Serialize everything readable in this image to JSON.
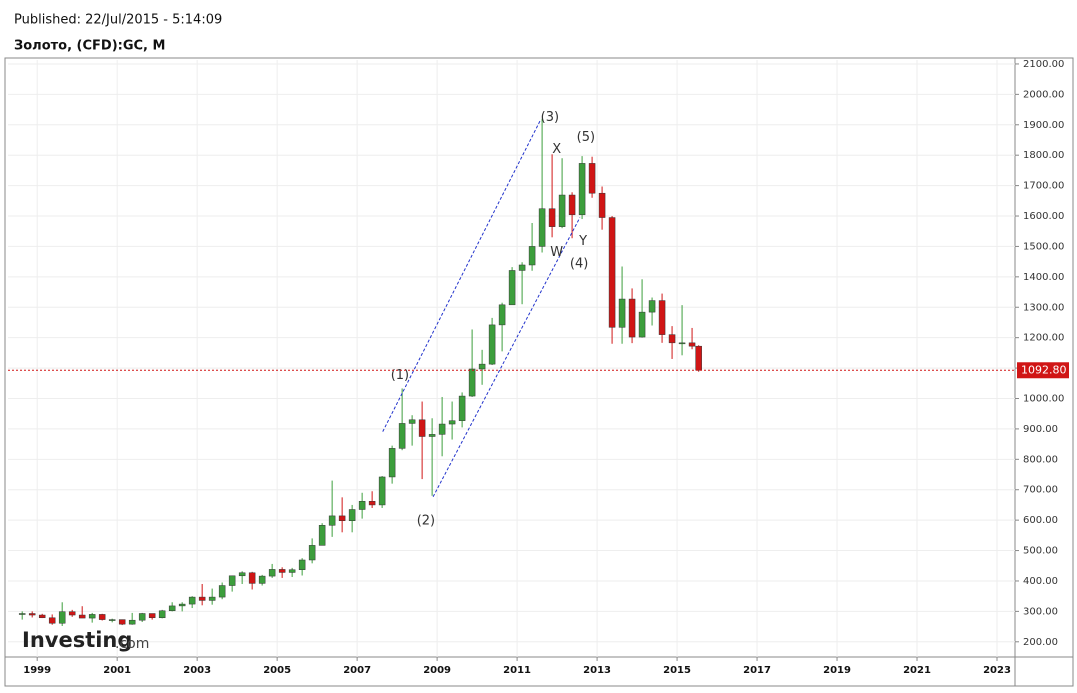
{
  "chart_data": {
    "type": "candlestick",
    "published": "Published: 22/Jul/2015 - 5:14:09",
    "title": "Золото, (CFD):GC, M",
    "brand": "Investing",
    "brand_suffix": ".com",
    "up_color": "#3c9e3c",
    "down_color": "#d01515",
    "grid": true,
    "xlim": [
      1998.27,
      2023.45
    ],
    "xticks": [
      1999,
      2001,
      2003,
      2005,
      2007,
      2009,
      2011,
      2013,
      2015,
      2017,
      2019,
      2021,
      2023
    ],
    "ylim": [
      150,
      2113
    ],
    "yticks": [
      {
        "value": 200,
        "label": "200.00"
      },
      {
        "value": 300,
        "label": "300.00"
      },
      {
        "value": 400,
        "label": "400.00"
      },
      {
        "value": 500,
        "label": "500.00"
      },
      {
        "value": 600,
        "label": "600.00"
      },
      {
        "value": 700,
        "label": "700.00"
      },
      {
        "value": 800,
        "label": "800.00"
      },
      {
        "value": 900,
        "label": "900.00"
      },
      {
        "value": 1000,
        "label": "1000.00"
      },
      {
        "value": 1100,
        "label": "1100.00"
      },
      {
        "value": 1200,
        "label": "1200.00"
      },
      {
        "value": 1300,
        "label": "1300.00"
      },
      {
        "value": 1400,
        "label": "1400.00"
      },
      {
        "value": 1500,
        "label": "1500.00"
      },
      {
        "value": 1600,
        "label": "1600.00"
      },
      {
        "value": 1700,
        "label": "1700.00"
      },
      {
        "value": 1800,
        "label": "1800.00"
      },
      {
        "value": 1900,
        "label": "1900.00"
      },
      {
        "value": 2000,
        "label": "2000.00"
      },
      {
        "value": 2100,
        "label": "2100.00"
      }
    ],
    "last_price": {
      "value": 1092.8,
      "label": "1092.80",
      "color": "#d01515"
    },
    "candles": {
      "x": [
        1998.625,
        1998.875,
        1999.125,
        1999.375,
        1999.625,
        1999.875,
        2000.125,
        2000.375,
        2000.625,
        2000.875,
        2001.125,
        2001.375,
        2001.625,
        2001.875,
        2002.125,
        2002.375,
        2002.625,
        2002.875,
        2003.125,
        2003.375,
        2003.625,
        2003.875,
        2004.125,
        2004.375,
        2004.625,
        2004.875,
        2005.125,
        2005.375,
        2005.625,
        2005.875,
        2006.125,
        2006.375,
        2006.625,
        2006.875,
        2007.125,
        2007.375,
        2007.625,
        2007.875,
        2008.125,
        2008.375,
        2008.625,
        2008.875,
        2009.125,
        2009.375,
        2009.625,
        2009.875,
        2010.125,
        2010.375,
        2010.625,
        2010.875,
        2011.125,
        2011.375,
        2011.625,
        2011.875,
        2012.125,
        2012.375,
        2012.625,
        2012.875,
        2013.125,
        2013.375,
        2013.625,
        2013.875,
        2014.125,
        2014.375,
        2014.625,
        2014.875,
        2015.125,
        2015.375,
        2015.54
      ],
      "open": [
        292,
        293,
        288,
        279,
        261,
        299,
        288,
        278,
        290,
        273,
        273,
        258,
        271,
        293,
        279,
        302,
        318,
        324,
        347,
        336,
        347,
        385,
        417,
        427,
        392,
        416,
        438,
        428,
        437,
        469,
        517,
        583,
        614,
        598,
        635,
        662,
        650,
        742,
        836,
        918,
        930,
        875,
        882,
        916,
        927,
        1008,
        1097,
        1113,
        1242,
        1308,
        1421,
        1439,
        1500,
        1624,
        1565,
        1669,
        1604,
        1773,
        1675,
        1595,
        1234,
        1327,
        1202,
        1284,
        1322,
        1210,
        1183,
        1183,
        1172
      ],
      "high": [
        300,
        300,
        292,
        290,
        330,
        305,
        317,
        295,
        292,
        276,
        273,
        295,
        295,
        293,
        305,
        330,
        330,
        350,
        390,
        375,
        395,
        418,
        432,
        430,
        420,
        456,
        445,
        443,
        475,
        540,
        590,
        730,
        675,
        650,
        690,
        695,
        745,
        845,
        1033,
        945,
        990,
        935,
        1005,
        990,
        1020,
        1227,
        1160,
        1265,
        1315,
        1432,
        1448,
        1577,
        1920,
        1803,
        1790,
        1678,
        1797,
        1795,
        1697,
        1600,
        1434,
        1362,
        1392,
        1332,
        1345,
        1238,
        1307,
        1232,
        1175
      ],
      "low": [
        273,
        280,
        278,
        256,
        252,
        282,
        278,
        263,
        270,
        264,
        255,
        256,
        265,
        273,
        277,
        300,
        300,
        311,
        320,
        322,
        340,
        365,
        390,
        372,
        385,
        410,
        410,
        413,
        418,
        458,
        520,
        545,
        560,
        560,
        605,
        640,
        640,
        720,
        830,
        845,
        735,
        680,
        810,
        865,
        905,
        1005,
        1045,
        1110,
        1155,
        1320,
        1310,
        1420,
        1480,
        1530,
        1560,
        1527,
        1590,
        1660,
        1555,
        1180,
        1180,
        1182,
        1200,
        1240,
        1183,
        1130,
        1142,
        1162,
        1088
      ],
      "close": [
        293,
        288,
        279,
        261,
        299,
        288,
        278,
        290,
        273,
        273,
        258,
        271,
        293,
        279,
        302,
        318,
        324,
        347,
        336,
        347,
        385,
        417,
        427,
        392,
        416,
        438,
        428,
        437,
        469,
        517,
        583,
        614,
        598,
        635,
        662,
        650,
        742,
        836,
        918,
        930,
        875,
        882,
        916,
        927,
        1008,
        1097,
        1113,
        1242,
        1308,
        1421,
        1439,
        1500,
        1624,
        1565,
        1669,
        1604,
        1773,
        1675,
        1595,
        1234,
        1327,
        1202,
        1284,
        1322,
        1210,
        1183,
        1183,
        1172,
        1093
      ]
    },
    "channel": {
      "color": "#2233cc",
      "lines": [
        {
          "x": [
            2007.64,
            2011.59
          ],
          "y": [
            891,
            1917
          ]
        },
        {
          "x": [
            2008.9,
            2012.57
          ],
          "y": [
            677,
            1595
          ]
        }
      ]
    },
    "annotations": [
      {
        "text": "(1)",
        "x": 2008.07,
        "y": 1075
      },
      {
        "text": "(2)",
        "x": 2008.72,
        "y": 598
      },
      {
        "text": "(3)",
        "x": 2011.82,
        "y": 1924
      },
      {
        "text": "X",
        "x": 2011.99,
        "y": 1818
      },
      {
        "text": "(5)",
        "x": 2012.72,
        "y": 1858
      },
      {
        "text": "W",
        "x": 2011.99,
        "y": 1480
      },
      {
        "text": "Y",
        "x": 2012.65,
        "y": 1516
      },
      {
        "text": "(4)",
        "x": 2012.55,
        "y": 1443
      }
    ]
  }
}
